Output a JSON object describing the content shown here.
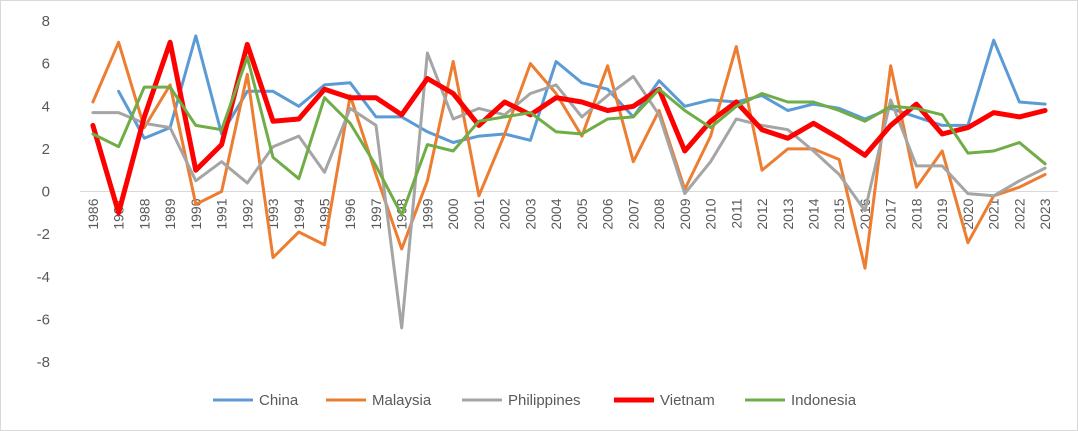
{
  "chart_data": {
    "type": "line",
    "title": "",
    "xlabel": "",
    "ylabel": "",
    "ylim": [
      -8,
      8
    ],
    "yticks": [
      -8,
      -6,
      -4,
      -2,
      0,
      2,
      4,
      6,
      8
    ],
    "legend_position": "bottom",
    "categories": [
      "1986",
      "1987",
      "1988",
      "1989",
      "1990",
      "1991",
      "1992",
      "1993",
      "1994",
      "1995",
      "1996",
      "1997",
      "1998",
      "1999",
      "2000",
      "2001",
      "2002",
      "2003",
      "2004",
      "2005",
      "2006",
      "2007",
      "2008",
      "2009",
      "2010",
      "2011",
      "2012",
      "2013",
      "2014",
      "2015",
      "2016",
      "2017",
      "2018",
      "2019",
      "2020",
      "2021",
      "2022",
      "2023"
    ],
    "series": [
      {
        "name": "China",
        "color": "#5b9bd5",
        "width": 3,
        "values": [
          null,
          4.7,
          2.5,
          3.0,
          7.3,
          2.7,
          4.7,
          4.7,
          4.0,
          5.0,
          5.1,
          3.5,
          3.5,
          2.8,
          2.3,
          2.6,
          2.7,
          2.4,
          6.1,
          5.1,
          4.8,
          3.5,
          5.2,
          4.0,
          4.3,
          4.2,
          4.5,
          3.8,
          4.1,
          3.9,
          3.4,
          3.9,
          3.5,
          3.1,
          3.1,
          7.1,
          4.2,
          4.1
        ]
      },
      {
        "name": "Malaysia",
        "color": "#ed7d31",
        "width": 3,
        "values": [
          4.2,
          7.0,
          3.0,
          5.0,
          -0.6,
          0.0,
          5.5,
          -3.1,
          -1.9,
          -2.5,
          4.5,
          0.8,
          -2.7,
          0.5,
          6.1,
          -0.2,
          2.7,
          6.0,
          4.6,
          2.6,
          5.9,
          1.4,
          3.8,
          0.1,
          2.6,
          6.8,
          1.0,
          2.0,
          2.0,
          1.5,
          -3.6,
          5.9,
          0.2,
          1.9,
          -2.4,
          -0.2,
          0.2,
          0.8
        ]
      },
      {
        "name": "Philippines",
        "color": "#a5a5a5",
        "width": 3,
        "values": [
          3.7,
          3.7,
          3.2,
          3.0,
          0.5,
          1.4,
          0.4,
          2.1,
          2.6,
          0.9,
          3.9,
          3.1,
          -6.4,
          6.5,
          3.4,
          3.9,
          3.6,
          4.6,
          5.0,
          3.5,
          4.5,
          5.4,
          3.6,
          -0.1,
          1.4,
          3.4,
          3.1,
          2.9,
          1.9,
          0.8,
          -0.9,
          4.3,
          1.2,
          1.2,
          -0.1,
          -0.2,
          0.5,
          1.1
        ]
      },
      {
        "name": "Vietnam",
        "color": "#ff0000",
        "width": 5,
        "values": [
          3.1,
          -1.0,
          3.5,
          7.0,
          1.0,
          2.2,
          6.9,
          3.3,
          3.4,
          4.8,
          4.4,
          4.4,
          3.6,
          5.3,
          4.6,
          3.1,
          4.2,
          3.6,
          4.4,
          4.2,
          3.8,
          4.0,
          4.8,
          1.9,
          3.3,
          4.2,
          2.9,
          2.5,
          3.2,
          2.5,
          1.7,
          3.1,
          4.1,
          2.7,
          3.0,
          3.7,
          3.5,
          3.8
        ]
      },
      {
        "name": "Indonesia",
        "color": "#70ad47",
        "width": 3,
        "values": [
          2.7,
          2.1,
          4.9,
          4.9,
          3.1,
          2.9,
          6.3,
          1.6,
          0.6,
          4.4,
          3.2,
          1.2,
          -1.1,
          2.2,
          1.9,
          3.3,
          3.5,
          3.7,
          2.8,
          2.7,
          3.4,
          3.5,
          4.8,
          3.8,
          3.0,
          4.0,
          4.6,
          4.2,
          4.2,
          3.8,
          3.3,
          4.0,
          3.9,
          3.6,
          1.8,
          1.9,
          2.3,
          1.3
        ]
      }
    ]
  }
}
